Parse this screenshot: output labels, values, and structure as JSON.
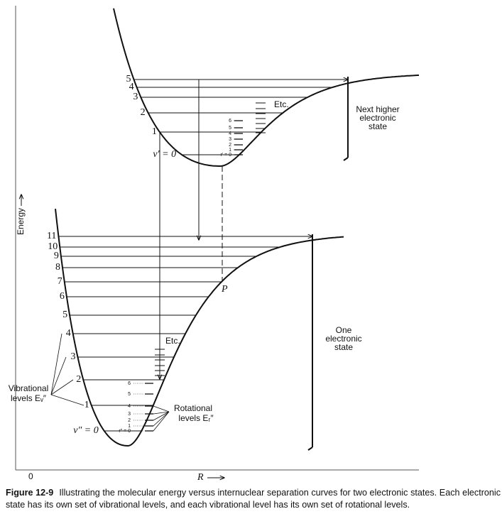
{
  "axes": {
    "y_label": "Energy",
    "origin": "0",
    "x_label": "R"
  },
  "upper_state": {
    "levels": [
      "5",
      "4",
      "3",
      "2",
      "1"
    ],
    "ground_level": "v′ = 0",
    "rotational_levels": [
      "6",
      "5",
      "4",
      "3",
      "2",
      "1",
      "r′ = 0"
    ],
    "etc": "Etc.",
    "label": [
      "Next higher",
      "electronic",
      "state"
    ]
  },
  "lower_state": {
    "levels": [
      "11",
      "10",
      "9",
      "8",
      "7",
      "6",
      "5",
      "4",
      "3",
      "2",
      "1"
    ],
    "ground_level": "v″ = 0",
    "rotational_levels": [
      "6",
      "5",
      "4",
      "3",
      "2",
      "1",
      "r″ = 0"
    ],
    "etc": "Etc.",
    "point": "P",
    "label": [
      "One",
      "electronic",
      "state"
    ]
  },
  "annotations": {
    "vibrational": [
      "Vibrational",
      "levels Eᵥ″"
    ],
    "rotational": [
      "Rotational",
      "levels Eᵣ″"
    ]
  },
  "caption": {
    "figure_number": "Figure 12-9",
    "text": "Illustrating the molecular energy versus internuclear separation curves for two electronic states. Each electronic state has its own set of vibrational levels, and each vibrational level has its own set of rotational levels."
  }
}
